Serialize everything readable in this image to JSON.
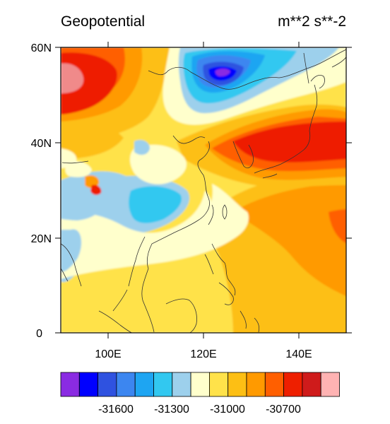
{
  "title": "Geopotential",
  "units": "m**2 s**-2",
  "map": {
    "lon_range": [
      90,
      150
    ],
    "lat_range": [
      0,
      60
    ],
    "lat_ticks": [
      "60N",
      "40N",
      "20N",
      "0"
    ],
    "lon_ticks": [
      "100E",
      "120E",
      "140E"
    ],
    "features": [
      "coastlines",
      "filled-contours"
    ]
  },
  "colorbar": {
    "colors": [
      "#8a2be2",
      "#0000ff",
      "#2f52e0",
      "#3c86f0",
      "#1ea5f2",
      "#32c8f0",
      "#9dd0ec",
      "#ffffcc",
      "#ffe24a",
      "#fdbf14",
      "#ff9a00",
      "#ff5f00",
      "#ee1f00",
      "#cf1b1b",
      "#ffb3b3"
    ],
    "labels": [
      "-31600",
      "-31300",
      "-31000",
      "-30700"
    ]
  }
}
